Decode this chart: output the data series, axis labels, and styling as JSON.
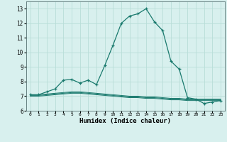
{
  "x": [
    0,
    1,
    2,
    3,
    4,
    5,
    6,
    7,
    8,
    9,
    10,
    11,
    12,
    13,
    14,
    15,
    16,
    17,
    18,
    19,
    20,
    21,
    22,
    23
  ],
  "main_line": [
    7.1,
    7.1,
    7.3,
    7.5,
    8.1,
    8.15,
    7.9,
    8.1,
    7.8,
    9.1,
    10.5,
    12.0,
    12.5,
    12.65,
    13.0,
    12.1,
    11.5,
    9.4,
    8.85,
    6.9,
    6.8,
    6.5,
    6.6,
    6.7
  ],
  "flat_line1": [
    7.1,
    7.1,
    7.15,
    7.2,
    7.25,
    7.3,
    7.3,
    7.25,
    7.2,
    7.15,
    7.1,
    7.05,
    7.0,
    7.0,
    6.95,
    6.95,
    6.9,
    6.85,
    6.85,
    6.8,
    6.8,
    6.8,
    6.8,
    6.8
  ],
  "flat_line2": [
    7.05,
    7.05,
    7.1,
    7.15,
    7.2,
    7.25,
    7.25,
    7.2,
    7.15,
    7.1,
    7.05,
    7.0,
    6.95,
    6.95,
    6.9,
    6.9,
    6.85,
    6.8,
    6.8,
    6.75,
    6.75,
    6.75,
    6.75,
    6.75
  ],
  "flat_line3": [
    7.0,
    7.0,
    7.05,
    7.1,
    7.15,
    7.2,
    7.2,
    7.15,
    7.1,
    7.05,
    7.0,
    6.95,
    6.9,
    6.9,
    6.85,
    6.85,
    6.8,
    6.75,
    6.75,
    6.7,
    6.7,
    6.7,
    6.7,
    6.7
  ],
  "line_color": "#1a7a6e",
  "bg_color": "#d8f0ee",
  "grid_color": "#b8ddd8",
  "xlabel": "Humidex (Indice chaleur)",
  "ylim": [
    6.0,
    13.5
  ],
  "xlim": [
    -0.5,
    23.5
  ],
  "yticks": [
    6,
    7,
    8,
    9,
    10,
    11,
    12,
    13
  ],
  "xticks": [
    0,
    1,
    2,
    3,
    4,
    5,
    6,
    7,
    8,
    9,
    10,
    11,
    12,
    13,
    14,
    15,
    16,
    17,
    18,
    19,
    20,
    21,
    22,
    23
  ],
  "xtick_labels": [
    "0",
    "1",
    "2",
    "3",
    "4",
    "5",
    "6",
    "7",
    "8",
    "9",
    "10",
    "11",
    "12",
    "13",
    "14",
    "15",
    "16",
    "17",
    "18",
    "19",
    "20",
    "21",
    "22",
    "23"
  ]
}
